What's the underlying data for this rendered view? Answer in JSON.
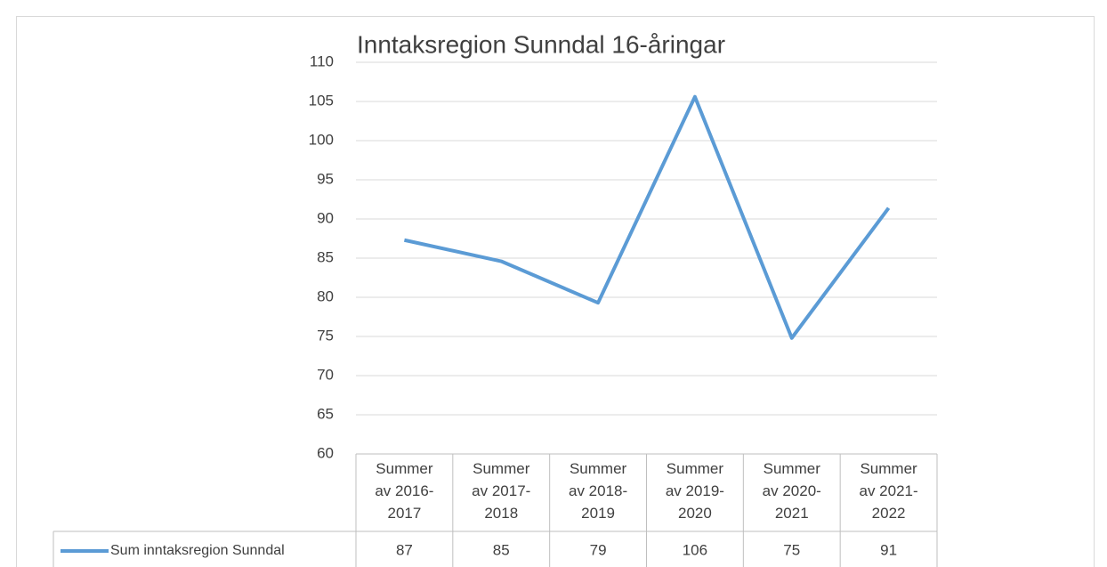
{
  "chart_data": {
    "type": "line",
    "title": "Inntaksregion Sunndal 16-åringar",
    "categories": [
      "Summer av 2016-2017",
      "Summer av 2017-2018",
      "Summer av 2018-2019",
      "Summer av 2019-2020",
      "Summer av 2020-2021",
      "Summer av 2021-2022"
    ],
    "series": [
      {
        "name": "Sum inntaksregion Sunndal",
        "color": "#5b9bd5",
        "values": [
          87.3,
          84.6,
          79.3,
          105.6,
          74.8,
          91.4
        ],
        "value_labels": [
          "87",
          "85",
          "79",
          "106",
          "75",
          "91"
        ]
      }
    ],
    "ylim": [
      60,
      110
    ],
    "yticks": [
      60,
      65,
      70,
      75,
      80,
      85,
      90,
      95,
      100,
      105,
      110
    ],
    "grid": true
  }
}
